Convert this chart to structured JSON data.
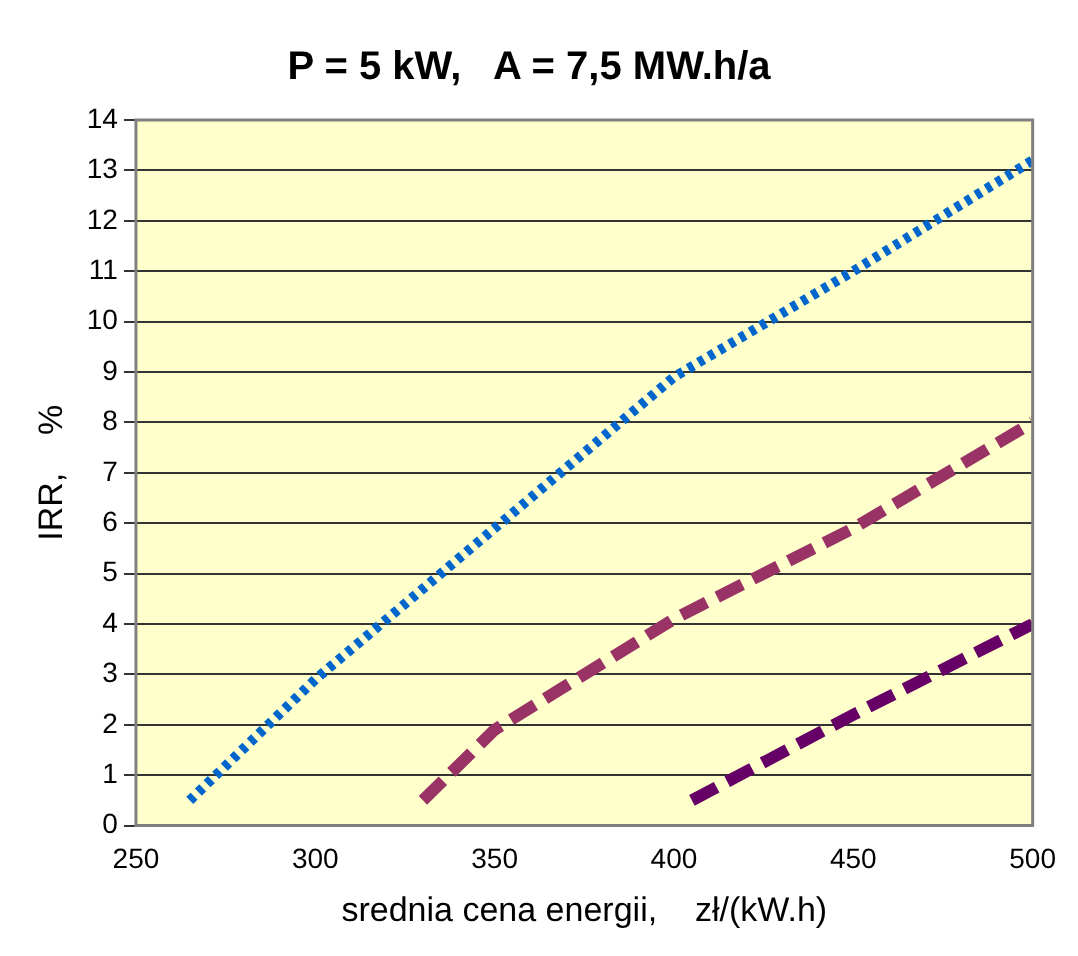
{
  "chart_data": {
    "type": "line",
    "title": "P = 5 kW,   A = 7,5 MW.h/a",
    "xlabel": "srednia cena energii,    zł/(kW.h)",
    "ylabel": "IRR,    %",
    "xlim": [
      250,
      500
    ],
    "xticks": [
      250,
      300,
      350,
      400,
      450,
      500
    ],
    "ylim": [
      0,
      14
    ],
    "yticks": [
      0,
      1,
      2,
      3,
      4,
      5,
      6,
      7,
      8,
      9,
      10,
      11,
      12,
      13,
      14
    ],
    "grid": "y",
    "legend": false,
    "marker": "none",
    "series": [
      {
        "color": "#0066cc",
        "line_style": "dotted",
        "x": [
          265,
          300,
          350,
          400,
          450,
          500
        ],
        "values": [
          0.5,
          2.9,
          5.9,
          8.9,
          11.0,
          13.2
        ]
      },
      {
        "color": "#993366",
        "line_style": "dashed",
        "x": [
          330,
          350,
          400,
          450,
          500
        ],
        "values": [
          0.5,
          1.9,
          4.1,
          5.9,
          8.0
        ]
      },
      {
        "color": "#660066",
        "line_style": "dashed",
        "x": [
          405,
          450,
          500
        ],
        "values": [
          0.5,
          2.2,
          4.0
        ]
      }
    ]
  }
}
